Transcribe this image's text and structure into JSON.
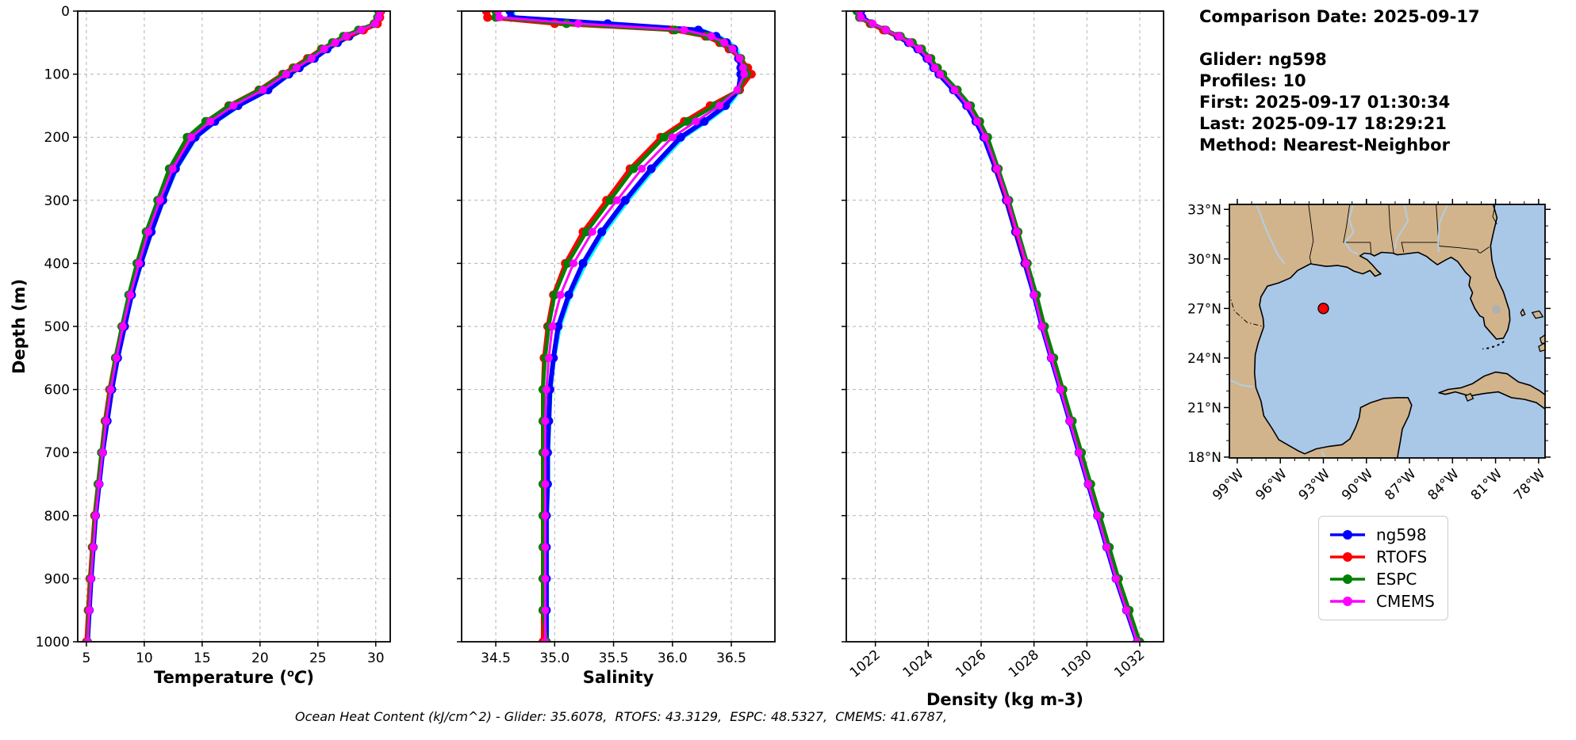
{
  "info": {
    "comparison_date": "Comparison Date: 2025-09-17",
    "glider": "Glider: ng598",
    "profiles": "Profiles: 10",
    "first": "First: 2025-09-17 01:30:34",
    "last": "Last: 2025-09-17 18:29:21",
    "method": "Method: Nearest-Neighbor"
  },
  "footer": {
    "text": "Ocean Heat Content (kJ/cm^2) - Glider: 35.6078,  RTOFS: 43.3129,  ESPC: 48.5327,  CMEMS: 41.6787,"
  },
  "axes": {
    "depth_label": "Depth (m)",
    "temp_label_prefix": "Temperature (",
    "temp_label_sup": "o",
    "temp_label_var": "C",
    "temp_label_suffix": ")",
    "salinity_label": "Salinity",
    "density_label": "Density (kg m-3)"
  },
  "legend": {
    "items": [
      {
        "label": "ng598",
        "color": "#0000ff"
      },
      {
        "label": "RTOFS",
        "color": "#ff0000"
      },
      {
        "label": "ESPC",
        "color": "#008000"
      },
      {
        "label": "CMEMS",
        "color": "#ff00ff"
      }
    ]
  },
  "colors": {
    "grid": "#b3b3b3",
    "frame": "#000000",
    "raw_glider": "#00ffff",
    "land": "#d2b48c",
    "water": "#a9c8e8",
    "river": "#aed0ee",
    "lake": "#b0b0b0",
    "map_marker_face": "#ff0000",
    "map_marker_edge": "#000000"
  },
  "map": {
    "lon_ticks": [
      -99,
      -96,
      -93,
      -90,
      -87,
      -84,
      -81,
      -78
    ],
    "lon_labels": [
      "99°W",
      "96°W",
      "93°W",
      "90°W",
      "87°W",
      "84°W",
      "81°W",
      "78°W"
    ],
    "lat_ticks": [
      33,
      30,
      27,
      24,
      21,
      18
    ],
    "lat_labels": [
      "33°N",
      "30°N",
      "27°N",
      "24°N",
      "21°N",
      "18°N"
    ],
    "marker": {
      "lon": -93,
      "lat": 27
    }
  },
  "chart_data": {
    "panels": [
      {
        "name": "temperature",
        "type": "line",
        "xlabel": "Temperature (oC)",
        "ylabel": "Depth (m)",
        "xlim": [
          4.25,
          31.25
        ],
        "ylim": [
          0,
          1000
        ],
        "grid": true,
        "show_ytick_labels": true,
        "rotate_xtick_labels": false,
        "xticks": [
          {
            "v": 5,
            "label": "5"
          },
          {
            "v": 10,
            "label": "10"
          },
          {
            "v": 15,
            "label": "15"
          },
          {
            "v": 20,
            "label": "20"
          },
          {
            "v": 25,
            "label": "25"
          },
          {
            "v": 30,
            "label": "30"
          }
        ],
        "yticks": [
          {
            "v": 0,
            "label": "0"
          },
          {
            "v": 100,
            "label": "100"
          },
          {
            "v": 200,
            "label": "200"
          },
          {
            "v": 300,
            "label": "300"
          },
          {
            "v": 400,
            "label": "400"
          },
          {
            "v": 500,
            "label": "500"
          },
          {
            "v": 600,
            "label": "600"
          },
          {
            "v": 700,
            "label": "700"
          },
          {
            "v": 800,
            "label": "800"
          },
          {
            "v": 900,
            "label": "900"
          },
          {
            "v": 1000,
            "label": "1000"
          }
        ],
        "depths": [
          0,
          10,
          20,
          30,
          40,
          50,
          60,
          75,
          90,
          100,
          125,
          150,
          175,
          200,
          250,
          300,
          350,
          400,
          450,
          500,
          550,
          600,
          650,
          700,
          750,
          800,
          850,
          900,
          950,
          1000
        ],
        "series": [
          {
            "name": "glider-raw",
            "color": "#00ffff",
            "values": [
              30.4,
              30.35,
              30.2,
              29.0,
              27.85,
              26.85,
              25.95,
              24.85,
              23.55,
              22.65,
              20.85,
              18.3,
              16.3,
              14.55,
              12.85,
              11.7,
              10.7,
              9.8,
              9.0,
              8.35,
              7.75,
              7.25,
              6.85,
              6.45,
              6.15,
              5.85,
              5.65,
              5.45,
              5.3,
              5.15
            ]
          },
          {
            "name": "ng598",
            "color": "#0000ff",
            "values": [
              30.3,
              30.25,
              30.1,
              28.9,
              27.7,
              26.7,
              25.8,
              24.7,
              23.4,
              22.5,
              20.7,
              18.1,
              16.1,
              14.4,
              12.7,
              11.6,
              10.6,
              9.7,
              8.9,
              8.3,
              7.7,
              7.2,
              6.8,
              6.4,
              6.1,
              5.8,
              5.6,
              5.4,
              5.25,
              5.1
            ]
          },
          {
            "name": "RTOFS",
            "color": "#ff0000",
            "values": [
              30.45,
              30.35,
              30.15,
              28.95,
              27.5,
              26.35,
              25.3,
              24.1,
              22.85,
              21.95,
              19.9,
              17.3,
              15.4,
              13.8,
              12.25,
              11.25,
              10.25,
              9.45,
              8.7,
              8.1,
              7.5,
              7.0,
              6.6,
              6.3,
              6.0,
              5.7,
              5.5,
              5.3,
              5.15,
              5.0
            ]
          },
          {
            "name": "ESPC",
            "color": "#008000",
            "values": [
              30.25,
              30.15,
              29.85,
              28.5,
              27.2,
              26.25,
              25.35,
              24.25,
              22.95,
              22.05,
              19.95,
              17.35,
              15.3,
              13.7,
              12.15,
              11.15,
              10.15,
              9.35,
              8.65,
              8.05,
              7.5,
              7.05,
              6.65,
              6.3,
              6.0,
              5.75,
              5.55,
              5.35,
              5.2,
              5.1
            ]
          },
          {
            "name": "CMEMS",
            "color": "#ff00ff",
            "values": [
              30.35,
              30.25,
              29.95,
              28.75,
              27.45,
              26.5,
              25.55,
              24.45,
              23.15,
              22.25,
              20.25,
              17.7,
              15.7,
              14.05,
              12.45,
              11.35,
              10.35,
              9.55,
              8.8,
              8.15,
              7.6,
              7.1,
              6.7,
              6.4,
              6.1,
              5.8,
              5.6,
              5.4,
              5.25,
              5.1
            ]
          }
        ]
      },
      {
        "name": "salinity",
        "type": "line",
        "xlabel": "Salinity",
        "ylabel": "Depth (m)",
        "xlim": [
          34.21,
          36.87
        ],
        "ylim": [
          0,
          1000
        ],
        "grid": true,
        "show_ytick_labels": false,
        "rotate_xtick_labels": false,
        "xticks": [
          {
            "v": 34.5,
            "label": "34.5"
          },
          {
            "v": 35.0,
            "label": "35.0"
          },
          {
            "v": 35.5,
            "label": "35.5"
          },
          {
            "v": 36.0,
            "label": "36.0"
          },
          {
            "v": 36.5,
            "label": "36.5"
          }
        ],
        "yticks": [
          {
            "v": 0,
            "label": "0"
          },
          {
            "v": 100,
            "label": "100"
          },
          {
            "v": 200,
            "label": "200"
          },
          {
            "v": 300,
            "label": "300"
          },
          {
            "v": 400,
            "label": "400"
          },
          {
            "v": 500,
            "label": "500"
          },
          {
            "v": 600,
            "label": "600"
          },
          {
            "v": 700,
            "label": "700"
          },
          {
            "v": 800,
            "label": "800"
          },
          {
            "v": 900,
            "label": "900"
          },
          {
            "v": 1000,
            "label": "1000"
          }
        ],
        "depths": [
          0,
          10,
          20,
          30,
          40,
          50,
          60,
          75,
          90,
          100,
          125,
          150,
          175,
          200,
          250,
          300,
          350,
          400,
          450,
          500,
          550,
          600,
          650,
          700,
          750,
          800,
          850,
          900,
          950,
          1000
        ],
        "series": [
          {
            "name": "glider-raw",
            "color": "#00ffff",
            "values": [
              34.65,
              34.66,
              35.5,
              36.26,
              36.4,
              36.49,
              36.55,
              36.58,
              36.6,
              36.6,
              36.58,
              36.48,
              36.3,
              36.1,
              35.85,
              35.63,
              35.43,
              35.27,
              35.14,
              35.05,
              35.0,
              34.97,
              34.96,
              34.95,
              34.95,
              34.94,
              34.94,
              34.94,
              34.94,
              34.94
            ]
          },
          {
            "name": "ng598",
            "color": "#0000ff",
            "values": [
              34.62,
              34.63,
              35.45,
              36.22,
              36.37,
              36.46,
              36.52,
              36.56,
              36.58,
              36.58,
              36.56,
              36.45,
              36.27,
              36.07,
              35.82,
              35.6,
              35.4,
              35.24,
              35.12,
              35.03,
              34.99,
              34.96,
              34.95,
              34.94,
              34.94,
              34.93,
              34.93,
              34.93,
              34.93,
              34.93
            ]
          },
          {
            "name": "RTOFS",
            "color": "#ff0000",
            "values": [
              34.42,
              34.43,
              35.0,
              36.0,
              36.28,
              36.4,
              36.48,
              36.58,
              36.64,
              36.67,
              36.57,
              36.32,
              36.1,
              35.9,
              35.64,
              35.44,
              35.24,
              35.09,
              34.99,
              34.94,
              34.91,
              34.9,
              34.9,
              34.9,
              34.9,
              34.9,
              34.9,
              34.9,
              34.9,
              34.9
            ]
          },
          {
            "name": "ESPC",
            "color": "#008000",
            "values": [
              34.5,
              34.5,
              35.1,
              36.02,
              36.3,
              36.42,
              36.5,
              36.58,
              36.61,
              36.63,
              36.56,
              36.36,
              36.13,
              35.93,
              35.67,
              35.47,
              35.27,
              35.11,
              35.0,
              34.95,
              34.92,
              34.9,
              34.9,
              34.9,
              34.9,
              34.9,
              34.9,
              34.9,
              34.9,
              34.93
            ]
          },
          {
            "name": "CMEMS",
            "color": "#ff00ff",
            "values": [
              34.52,
              34.53,
              35.2,
              36.1,
              36.33,
              36.44,
              36.51,
              36.57,
              36.6,
              36.61,
              36.55,
              36.4,
              36.2,
              36.0,
              35.74,
              35.53,
              35.32,
              35.16,
              35.05,
              34.98,
              34.95,
              34.93,
              34.92,
              34.92,
              34.92,
              34.92,
              34.92,
              34.92,
              34.92,
              34.92
            ]
          }
        ]
      },
      {
        "name": "density",
        "type": "line",
        "xlabel": "Density (kg m-3)",
        "ylabel": "Depth (m)",
        "xlim": [
          1020.9,
          1032.9
        ],
        "ylim": [
          0,
          1000
        ],
        "grid": true,
        "show_ytick_labels": false,
        "rotate_xtick_labels": true,
        "xticks": [
          {
            "v": 1022,
            "label": "1022"
          },
          {
            "v": 1024,
            "label": "1024"
          },
          {
            "v": 1026,
            "label": "1026"
          },
          {
            "v": 1028,
            "label": "1028"
          },
          {
            "v": 1030,
            "label": "1030"
          },
          {
            "v": 1032,
            "label": "1032"
          }
        ],
        "yticks": [
          {
            "v": 0,
            "label": "0"
          },
          {
            "v": 100,
            "label": "100"
          },
          {
            "v": 200,
            "label": "200"
          },
          {
            "v": 300,
            "label": "300"
          },
          {
            "v": 400,
            "label": "400"
          },
          {
            "v": 500,
            "label": "500"
          },
          {
            "v": 600,
            "label": "600"
          },
          {
            "v": 700,
            "label": "700"
          },
          {
            "v": 800,
            "label": "800"
          },
          {
            "v": 900,
            "label": "900"
          },
          {
            "v": 1000,
            "label": "1000"
          }
        ],
        "depths": [
          0,
          10,
          20,
          30,
          40,
          50,
          60,
          75,
          90,
          100,
          125,
          150,
          175,
          200,
          250,
          300,
          350,
          400,
          450,
          500,
          550,
          600,
          650,
          700,
          750,
          800,
          850,
          900,
          950,
          1000
        ],
        "series": [
          {
            "name": "glider-raw",
            "color": "#00ffff",
            "values": [
              1021.5,
              1021.55,
              1021.9,
              1022.4,
              1022.9,
              1023.3,
              1023.65,
              1024.0,
              1024.25,
              1024.45,
              1025.0,
              1025.5,
              1025.85,
              1026.15,
              1026.6,
              1027.0,
              1027.35,
              1027.7,
              1028.05,
              1028.35,
              1028.7,
              1029.05,
              1029.4,
              1029.75,
              1030.1,
              1030.45,
              1030.8,
              1031.15,
              1031.55,
              1031.95
            ]
          },
          {
            "name": "ng598",
            "color": "#0000ff",
            "values": [
              1021.45,
              1021.5,
              1021.85,
              1022.35,
              1022.85,
              1023.25,
              1023.6,
              1023.95,
              1024.2,
              1024.4,
              1024.95,
              1025.45,
              1025.8,
              1026.1,
              1026.55,
              1026.95,
              1027.3,
              1027.65,
              1028.0,
              1028.3,
              1028.65,
              1029.0,
              1029.35,
              1029.7,
              1030.05,
              1030.4,
              1030.75,
              1031.1,
              1031.5,
              1031.9
            ]
          },
          {
            "name": "RTOFS",
            "color": "#ff0000",
            "values": [
              1021.35,
              1021.4,
              1021.8,
              1022.3,
              1022.9,
              1023.35,
              1023.7,
              1024.05,
              1024.3,
              1024.5,
              1025.05,
              1025.55,
              1025.9,
              1026.2,
              1026.6,
              1027.0,
              1027.35,
              1027.7,
              1028.05,
              1028.35,
              1028.7,
              1029.05,
              1029.4,
              1029.75,
              1030.1,
              1030.45,
              1030.8,
              1031.15,
              1031.55,
              1031.95
            ]
          },
          {
            "name": "ESPC",
            "color": "#008000",
            "values": [
              1021.3,
              1021.4,
              1021.85,
              1022.4,
              1022.95,
              1023.4,
              1023.75,
              1024.1,
              1024.35,
              1024.55,
              1025.1,
              1025.6,
              1025.95,
              1026.25,
              1026.65,
              1027.05,
              1027.4,
              1027.75,
              1028.1,
              1028.4,
              1028.75,
              1029.1,
              1029.45,
              1029.8,
              1030.15,
              1030.5,
              1030.85,
              1031.2,
              1031.6,
              1032.0
            ]
          },
          {
            "name": "CMEMS",
            "color": "#ff00ff",
            "values": [
              1021.4,
              1021.45,
              1021.9,
              1022.4,
              1022.9,
              1023.3,
              1023.65,
              1024.0,
              1024.25,
              1024.45,
              1025.0,
              1025.5,
              1025.85,
              1026.15,
              1026.6,
              1027.0,
              1027.35,
              1027.7,
              1028.0,
              1028.3,
              1028.65,
              1029.0,
              1029.35,
              1029.7,
              1030.05,
              1030.4,
              1030.75,
              1031.1,
              1031.5,
              1031.9
            ]
          }
        ]
      }
    ]
  }
}
